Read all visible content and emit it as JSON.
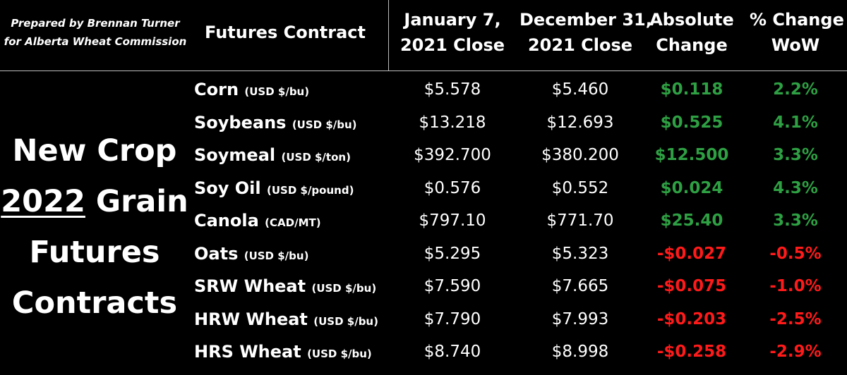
{
  "credit": {
    "line1": "Prepared by Brennan Turner",
    "line2": "for Alberta Wheat Commission"
  },
  "headers": {
    "contract": "Futures Contract",
    "jan_line1": "January 7,",
    "jan_line2": "2021 Close",
    "dec_line1": "December 31,",
    "dec_line2": "2021 Close",
    "abs_line1": "Absolute",
    "abs_line2": "Change",
    "pct_line1": "% Change",
    "pct_line2": "WoW"
  },
  "title": {
    "line1": "New Crop",
    "year": "2022",
    "line2_rest": " Grain",
    "line3": "Futures",
    "line4": "Contracts"
  },
  "colors": {
    "positive": "#2ea043",
    "negative": "#ff1a1a",
    "background": "#000000"
  },
  "rows": [
    {
      "name": "Corn",
      "unit": "(USD $/bu)",
      "jan": "$5.578",
      "dec": "$5.460",
      "abs": "$0.118",
      "pct": "2.2%",
      "direction": "positive"
    },
    {
      "name": "Soybeans",
      "unit": "(USD $/bu)",
      "jan": "$13.218",
      "dec": "$12.693",
      "abs": "$0.525",
      "pct": "4.1%",
      "direction": "positive"
    },
    {
      "name": "Soymeal",
      "unit": "(USD $/ton)",
      "jan": "$392.700",
      "dec": "$380.200",
      "abs": "$12.500",
      "pct": "3.3%",
      "direction": "positive"
    },
    {
      "name": "Soy Oil",
      "unit": "(USD $/pound)",
      "jan": "$0.576",
      "dec": "$0.552",
      "abs": "$0.024",
      "pct": "4.3%",
      "direction": "positive"
    },
    {
      "name": "Canola",
      "unit": "(CAD/MT)",
      "jan": "$797.10",
      "dec": "$771.70",
      "abs": "$25.40",
      "pct": "3.3%",
      "direction": "positive"
    },
    {
      "name": "Oats",
      "unit": "(USD $/bu)",
      "jan": "$5.295",
      "dec": "$5.323",
      "abs": "-$0.027",
      "pct": "-0.5%",
      "direction": "negative"
    },
    {
      "name": "SRW Wheat",
      "unit": "(USD $/bu)",
      "jan": "$7.590",
      "dec": "$7.665",
      "abs": "-$0.075",
      "pct": "-1.0%",
      "direction": "negative"
    },
    {
      "name": "HRW Wheat",
      "unit": "(USD $/bu)",
      "jan": "$7.790",
      "dec": "$7.993",
      "abs": "-$0.203",
      "pct": "-2.5%",
      "direction": "negative"
    },
    {
      "name": "HRS Wheat",
      "unit": "(USD $/bu)",
      "jan": "$8.740",
      "dec": "$8.998",
      "abs": "-$0.258",
      "pct": "-2.9%",
      "direction": "negative"
    }
  ]
}
